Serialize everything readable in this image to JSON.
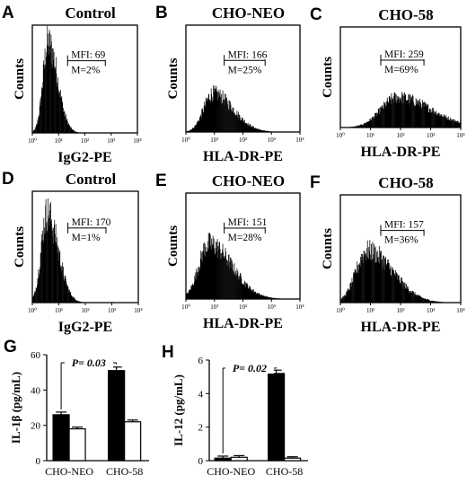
{
  "chart_data": [
    {
      "panel": "A",
      "type": "histogram",
      "title": "Control",
      "xlabel": "IgG2-PE",
      "ylabel": "Counts",
      "xscale": "log",
      "xlim": [
        1,
        10000
      ],
      "xticks": [
        "10⁰",
        "10¹",
        "10²",
        "10³",
        "10⁴"
      ],
      "gate": {
        "mfi": "MFI: 69",
        "m": "M=2%",
        "from": 22,
        "to": 600
      },
      "distribution": {
        "peak_log": 0.6,
        "sd_log": 0.2,
        "skew": 0.8,
        "max_height": 0.83
      }
    },
    {
      "panel": "B",
      "type": "histogram",
      "title": "CHO-NEO",
      "xlabel": "HLA-DR-PE",
      "ylabel": "Counts",
      "xscale": "log",
      "xlim": [
        1,
        10000
      ],
      "xticks": [
        "10⁰",
        "10¹",
        "10²",
        "10³",
        "10⁴"
      ],
      "gate": {
        "mfi": "MFI: 166",
        "m": "M=25%",
        "from": 22,
        "to": 600
      },
      "distribution": {
        "peak_log": 0.95,
        "sd_log": 0.33,
        "skew": 1.1,
        "max_height": 0.36
      }
    },
    {
      "panel": "C",
      "type": "histogram",
      "title": "CHO-58",
      "xlabel": "HLA-DR-PE",
      "ylabel": "Counts",
      "xscale": "log",
      "xlim": [
        1,
        10000
      ],
      "xticks": [
        "10⁰",
        "10¹",
        "10²",
        "10³",
        "10⁴"
      ],
      "gate": {
        "mfi": "MFI: 259",
        "m": "M=69%",
        "from": 22,
        "to": 600
      },
      "distribution": {
        "peak_log": 1.9,
        "sd_log": 0.55,
        "skew": 1.0,
        "max_height": 0.3
      }
    },
    {
      "panel": "D",
      "type": "histogram",
      "title": "Control",
      "xlabel": "IgG2-PE",
      "ylabel": "Counts",
      "xscale": "log",
      "xlim": [
        1,
        10000
      ],
      "xticks": [
        "10⁰",
        "10¹",
        "10²",
        "10³",
        "10⁴"
      ],
      "gate": {
        "mfi": "MFI: 170",
        "m": "M=1%",
        "from": 22,
        "to": 600
      },
      "distribution": {
        "peak_log": 0.55,
        "sd_log": 0.22,
        "skew": 0.9,
        "max_height": 0.8
      }
    },
    {
      "panel": "E",
      "type": "histogram",
      "title": "CHO-NEO",
      "xlabel": "HLA-DR-PE",
      "ylabel": "Counts",
      "xscale": "log",
      "xlim": [
        1,
        10000
      ],
      "xticks": [
        "10⁰",
        "10¹",
        "10²",
        "10³",
        "10⁴"
      ],
      "gate": {
        "mfi": "MFI: 151",
        "m": "M=28%",
        "from": 22,
        "to": 600
      },
      "distribution": {
        "peak_log": 0.8,
        "sd_log": 0.35,
        "skew": 1.3,
        "max_height": 0.52
      }
    },
    {
      "panel": "F",
      "type": "histogram",
      "title": "CHO-58",
      "xlabel": "HLA-DR-PE",
      "ylabel": "Counts",
      "xscale": "log",
      "xlim": [
        1,
        10000
      ],
      "xticks": [
        "10⁰",
        "10¹",
        "10²",
        "10³",
        "10⁴"
      ],
      "gate": {
        "mfi": "MFI: 157",
        "m": "M=36%",
        "from": 22,
        "to": 600
      },
      "distribution": {
        "peak_log": 0.9,
        "sd_log": 0.38,
        "skew": 1.2,
        "max_height": 0.48
      }
    },
    {
      "panel": "G",
      "type": "bar",
      "ylabel": "IL-1β (pg/mL)",
      "ylim": [
        0,
        60
      ],
      "yticks": [
        0,
        20,
        40,
        60
      ],
      "categories": [
        "CHO-NEO",
        "CHO-58"
      ],
      "series": [
        {
          "fill": "#000000",
          "values": [
            26,
            51
          ],
          "errors": [
            1.5,
            2
          ]
        },
        {
          "fill": "#ffffff",
          "values": [
            18,
            22
          ],
          "errors": [
            1,
            1
          ]
        }
      ],
      "annotation": "P= 0.03"
    },
    {
      "panel": "H",
      "type": "bar",
      "ylabel": "IL-12 (pg/mL)",
      "ylim": [
        0,
        6
      ],
      "yticks": [
        0,
        2,
        4,
        6
      ],
      "categories": [
        "CHO-NEO",
        "CHO-58"
      ],
      "series": [
        {
          "fill": "#000000",
          "values": [
            0.15,
            5.2
          ],
          "errors": [
            0.12,
            0.2
          ]
        },
        {
          "fill": "#ffffff",
          "values": [
            0.2,
            0.15
          ],
          "errors": [
            0.1,
            0.08
          ]
        }
      ],
      "annotation": "P= 0.02"
    }
  ]
}
